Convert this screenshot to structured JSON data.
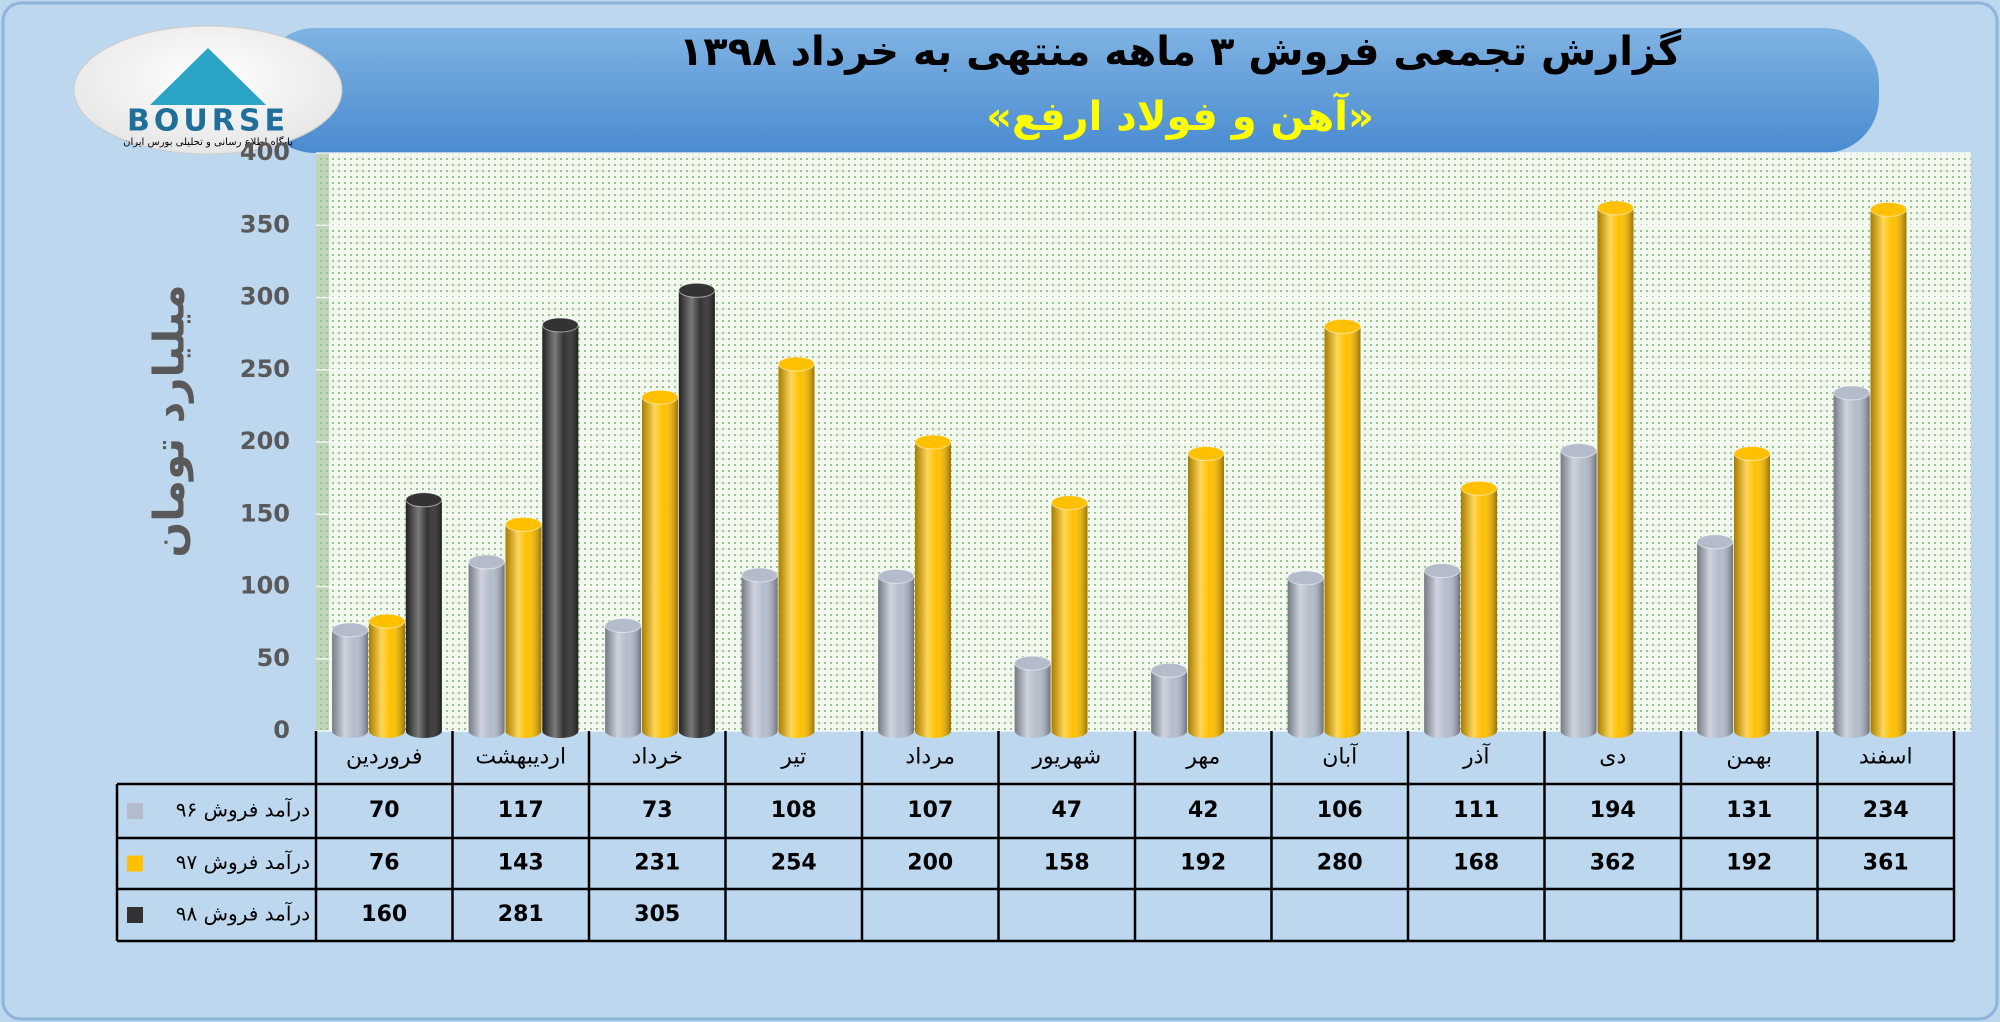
{
  "logo": {
    "text": "BOURSE",
    "caption": "پایگاه اطلاع رسانی و تحلیلی بورس ایران"
  },
  "chart_data": {
    "type": "bar",
    "title": "گزارش تجمعی فروش ۳ ماهه منتهی به خرداد ۱۳۹۸",
    "subtitle": "«آهن و فولاد ارفع»",
    "y_label": "میلیارد تومان",
    "categories": [
      "فروردین",
      "اردیبهشت",
      "خرداد",
      "تیر",
      "مرداد",
      "شهریور",
      "مهر",
      "آبان",
      "آذر",
      "دی",
      "بهمن",
      "اسفند"
    ],
    "series": [
      {
        "name": "درآمد فروش ۹۶",
        "color": "#b4bccb",
        "values": [
          70,
          117,
          73,
          108,
          107,
          47,
          42,
          106,
          111,
          194,
          131,
          234
        ]
      },
      {
        "name": "درآمد فروش ۹۷",
        "color": "#ffc000",
        "values": [
          76,
          143,
          231,
          254,
          200,
          158,
          192,
          280,
          168,
          362,
          192,
          361
        ]
      },
      {
        "name": "درآمد فروش ۹۸",
        "color": "#333333",
        "values": [
          160,
          281,
          305,
          null,
          null,
          null,
          null,
          null,
          null,
          null,
          null,
          null
        ]
      }
    ],
    "ylim": [
      0,
      400
    ],
    "yticks": [
      0,
      50,
      100,
      150,
      200,
      250,
      300,
      350,
      400
    ],
    "grid": true,
    "data_table": true
  }
}
